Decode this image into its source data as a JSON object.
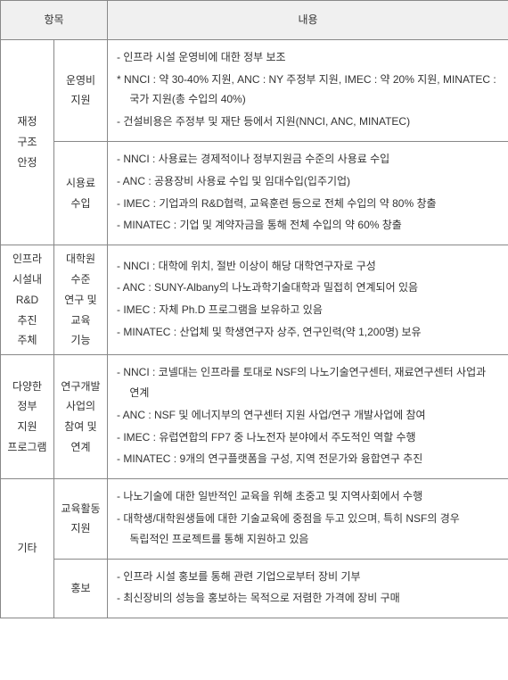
{
  "header": {
    "col1": "항목",
    "col2": "내용"
  },
  "rows": [
    {
      "cat1": "재정\n구조\n안정",
      "groups": [
        {
          "cat2": "운영비\n지원",
          "lines": [
            "- 인프라 시설 운영비에 대한 정부 보조",
            "* NNCI : 약 30-40% 지원,  ANC : NY 주정부 지원, IMEC : 약 20% 지원, MINATEC : 국가 지원(총 수입의 40%)",
            "- 건설비용은 주정부 및 재단 등에서 지원(NNCI, ANC, MINATEC)"
          ]
        },
        {
          "cat2": "시용료\n수입",
          "lines": [
            "- NNCI : 사용료는 경제적이나 정부지원금 수준의 사용료 수입",
            "- ANC : 공용장비 사용료 수입 및 임대수입(입주기업)",
            "- IMEC : 기업과의 R&D협력, 교육훈련 등으로 전체 수입의 약 80% 창출",
            "- MINATEC : 기업 및 계약자금을 통해 전체 수입의 약 60% 창출"
          ]
        }
      ]
    },
    {
      "cat1": "인프라\n시설내\nR&D\n추진\n주체",
      "groups": [
        {
          "cat2": "대학원\n수준\n연구 및\n교육\n기능",
          "lines": [
            "- NNCI : 대학에 위치, 절반 이상이 해당 대학연구자로 구성",
            "- ANC : SUNY-Albany의 나노과학기술대학과 밀접히 연계되어 있음",
            "- IMEC : 자체 Ph.D 프로그램을 보유하고 있음",
            "- MINATEC : 산업체 및 학생연구자 상주, 연구인력(약 1,200명) 보유"
          ]
        }
      ]
    },
    {
      "cat1": "다양한\n정부\n지원\n프로그램",
      "groups": [
        {
          "cat2": "연구개발\n사업의\n참여 및\n연계",
          "lines": [
            "- NNCI : 코넬대는 인프라를 토대로 NSF의 나노기술연구센터, 재료연구센터 사업과 연계",
            "- ANC : NSF 및 에너지부의 연구센터 지원 사업/연구 개발사업에 참여",
            "- IMEC : 유럽연합의 FP7 중 나노전자 분야에서 주도적인 역할 수행",
            "- MINATEC : 9개의 연구플랫폼을 구성, 지역 전문가와 융합연구 추진"
          ]
        }
      ]
    },
    {
      "cat1": "기타",
      "groups": [
        {
          "cat2": "교육활동\n지원",
          "lines": [
            "- 나노기술에 대한 일반적인 교육을 위해 초중고 및 지역사회에서 수행",
            "- 대학생/대학원생들에 대한 기술교육에 중점을 두고 있으며, 특히 NSF의 경우 독립적인 프로젝트를 통해 지원하고 있음"
          ]
        },
        {
          "cat2": "홍보",
          "lines": [
            "- 인프라 시설 홍보를 통해 관련 기업으로부터 장비 기부",
            "- 최신장비의 성능을 홍보하는 목적으로 저렴한 가격에 장비 구매"
          ]
        }
      ]
    }
  ]
}
